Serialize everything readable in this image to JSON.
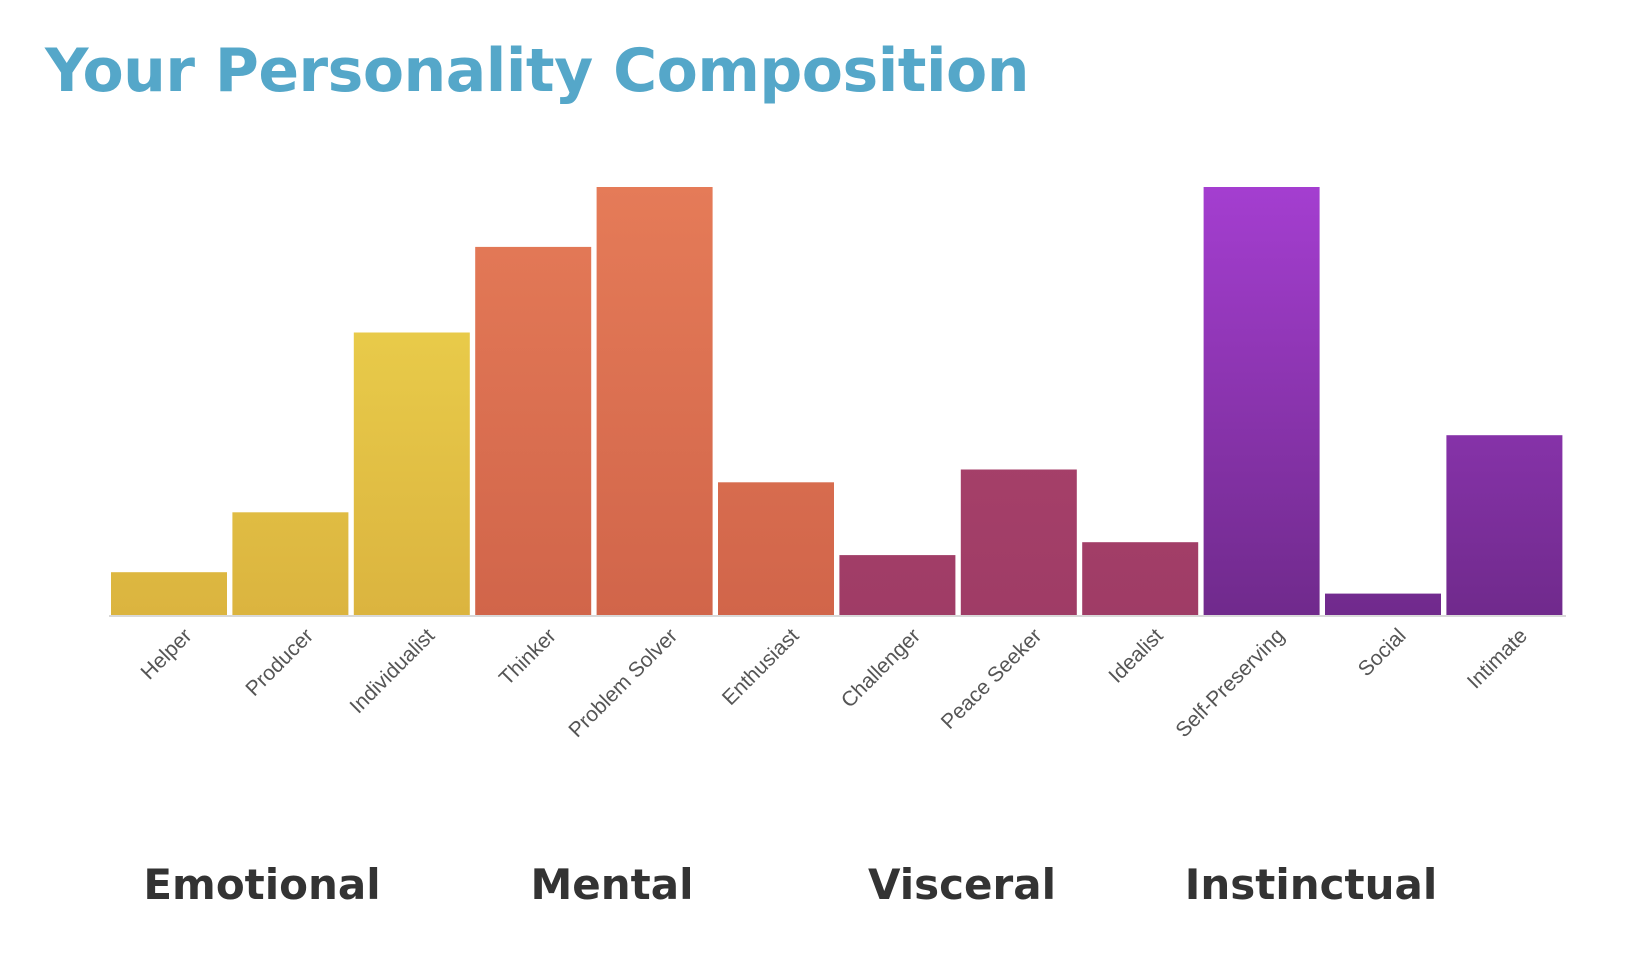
{
  "title": "Your Personality Composition",
  "chart_data": {
    "type": "bar",
    "categories": [
      "Helper",
      "Producer",
      "Individualist",
      "Thinker",
      "Problem Solver",
      "Enthusiast",
      "Challenger",
      "Peace Seeker",
      "Idealist",
      "Self-Preserving",
      "Social",
      "Intimate"
    ],
    "values": [
      10,
      24,
      66,
      86,
      100,
      31,
      14,
      34,
      17,
      100,
      5,
      42
    ],
    "ylim": [
      0,
      100
    ],
    "grid": false,
    "colors": [
      [
        "#efd64f",
        "#dbb43f"
      ],
      [
        "#efd64f",
        "#dbb43f"
      ],
      [
        "#efd64f",
        "#dbb43f"
      ],
      [
        "#e57b58",
        "#d1654a"
      ],
      [
        "#e57b58",
        "#d1654a"
      ],
      [
        "#e57b58",
        "#d1654a"
      ],
      [
        "#b0466e",
        "#9f3c66"
      ],
      [
        "#b0466e",
        "#9f3c66"
      ],
      [
        "#b0466e",
        "#9f3c66"
      ],
      [
        "#a43ed0",
        "#702a8c"
      ],
      [
        "#a43ed0",
        "#702a8c"
      ],
      [
        "#a43ed0",
        "#702a8c"
      ]
    ]
  },
  "groups": [
    "Emotional",
    "Mental",
    "Visceral",
    "Instinctual"
  ]
}
